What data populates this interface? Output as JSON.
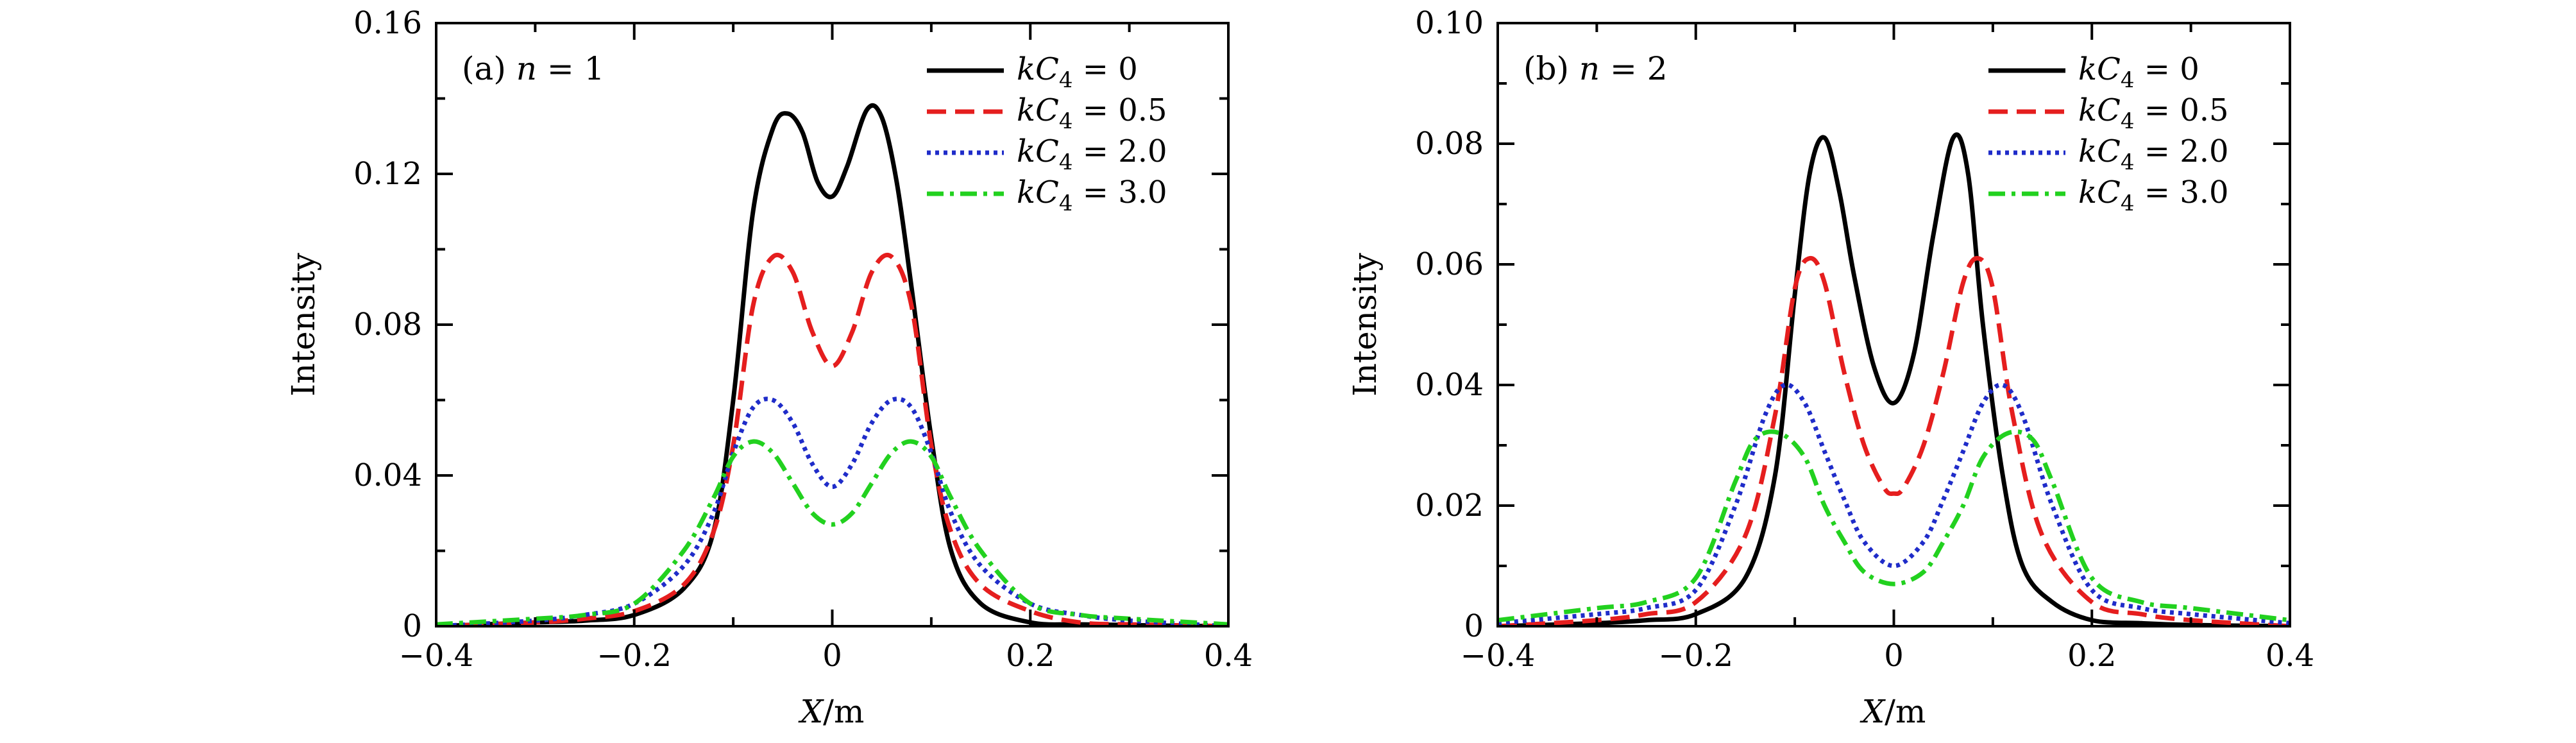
{
  "chart_data": [
    {
      "type": "line",
      "panel_label": "(a) n = 1",
      "xlabel": "X/m",
      "ylabel": "Intensity",
      "xlim": [
        -0.4,
        0.4
      ],
      "ylim": [
        0,
        0.16
      ],
      "xticks": [
        "−0.4",
        "−0.2",
        "0",
        "0.2",
        "0.4"
      ],
      "yticks": [
        "0",
        "0.04",
        "0.08",
        "0.12",
        "0.16"
      ],
      "legend_position": "top-right",
      "grid": false,
      "series": [
        {
          "name": "kC4 = 0",
          "color": "#000000",
          "dash": "solid",
          "x": [
            -0.4,
            -0.35,
            -0.3,
            -0.25,
            -0.2,
            -0.15,
            -0.12,
            -0.1,
            -0.08,
            -0.06,
            -0.045,
            -0.03,
            -0.015,
            0,
            0.015,
            0.035,
            0.05,
            0.065,
            0.08,
            0.1,
            0.12,
            0.15,
            0.2,
            0.25,
            0.3,
            0.35,
            0.4
          ],
          "y": [
            0.0,
            0.0005,
            0.001,
            0.0015,
            0.003,
            0.01,
            0.025,
            0.06,
            0.11,
            0.132,
            0.136,
            0.131,
            0.118,
            0.114,
            0.122,
            0.137,
            0.135,
            0.118,
            0.09,
            0.05,
            0.02,
            0.006,
            0.001,
            0.0005,
            0.0003,
            0.0001,
            0.0
          ]
        },
        {
          "name": "kC4 = 0.5",
          "color": "#e51e1e",
          "dash": "dashed",
          "x": [
            -0.4,
            -0.3,
            -0.25,
            -0.2,
            -0.15,
            -0.12,
            -0.1,
            -0.08,
            -0.06,
            -0.04,
            -0.02,
            0,
            0.02,
            0.04,
            0.06,
            0.08,
            0.1,
            0.12,
            0.15,
            0.2,
            0.25,
            0.3,
            0.4
          ],
          "y": [
            0.0,
            0.001,
            0.002,
            0.004,
            0.011,
            0.025,
            0.048,
            0.085,
            0.098,
            0.094,
            0.078,
            0.069,
            0.078,
            0.094,
            0.098,
            0.085,
            0.048,
            0.025,
            0.011,
            0.004,
            0.001,
            0.0005,
            0.0
          ]
        },
        {
          "name": "kC4 = 2.0",
          "color": "#1f2cc9",
          "dash": "dotted",
          "x": [
            -0.4,
            -0.3,
            -0.25,
            -0.2,
            -0.15,
            -0.12,
            -0.1,
            -0.08,
            -0.06,
            -0.04,
            -0.02,
            0,
            0.02,
            0.04,
            0.06,
            0.08,
            0.1,
            0.12,
            0.15,
            0.2,
            0.25,
            0.3,
            0.4
          ],
          "y": [
            0.0,
            0.0015,
            0.003,
            0.006,
            0.016,
            0.03,
            0.046,
            0.058,
            0.06,
            0.054,
            0.043,
            0.037,
            0.043,
            0.054,
            0.06,
            0.058,
            0.046,
            0.03,
            0.016,
            0.006,
            0.003,
            0.0015,
            0.0
          ]
        },
        {
          "name": "kC4 = 3.0",
          "color": "#22d11f",
          "dash": "dashdot",
          "x": [
            -0.4,
            -0.3,
            -0.25,
            -0.2,
            -0.15,
            -0.12,
            -0.1,
            -0.08,
            -0.06,
            -0.04,
            -0.02,
            0,
            0.02,
            0.04,
            0.06,
            0.08,
            0.1,
            0.12,
            0.15,
            0.2,
            0.25,
            0.3,
            0.4
          ],
          "y": [
            0.0005,
            0.002,
            0.003,
            0.006,
            0.02,
            0.034,
            0.045,
            0.049,
            0.046,
            0.038,
            0.03,
            0.027,
            0.03,
            0.038,
            0.046,
            0.049,
            0.045,
            0.034,
            0.02,
            0.006,
            0.003,
            0.002,
            0.0005
          ]
        }
      ]
    },
    {
      "type": "line",
      "panel_label": "(b) n = 2",
      "xlabel": "X/m",
      "ylabel": "Intensity",
      "xlim": [
        -0.4,
        0.4
      ],
      "ylim": [
        0,
        0.1
      ],
      "xticks": [
        "−0.4",
        "−0.2",
        "0",
        "0.2",
        "0.4"
      ],
      "yticks": [
        "0",
        "0.02",
        "0.04",
        "0.06",
        "0.08",
        "0.10"
      ],
      "legend_position": "top-right",
      "grid": false,
      "series": [
        {
          "name": "kC4 = 0",
          "color": "#000000",
          "dash": "solid",
          "x": [
            -0.4,
            -0.3,
            -0.25,
            -0.2,
            -0.15,
            -0.12,
            -0.1,
            -0.085,
            -0.07,
            -0.055,
            -0.04,
            -0.02,
            0,
            0.02,
            0.04,
            0.06,
            0.075,
            0.09,
            0.11,
            0.13,
            0.16,
            0.2,
            0.25,
            0.3,
            0.4
          ],
          "y": [
            0.0,
            0.0005,
            0.001,
            0.002,
            0.008,
            0.025,
            0.055,
            0.075,
            0.081,
            0.072,
            0.058,
            0.043,
            0.037,
            0.045,
            0.065,
            0.081,
            0.075,
            0.05,
            0.025,
            0.01,
            0.004,
            0.001,
            0.0005,
            0.0002,
            0.0
          ]
        },
        {
          "name": "kC4 = 0.5",
          "color": "#e51e1e",
          "dash": "dashed",
          "x": [
            -0.4,
            -0.3,
            -0.25,
            -0.2,
            -0.15,
            -0.12,
            -0.1,
            -0.085,
            -0.07,
            -0.05,
            -0.03,
            -0.01,
            0,
            0.01,
            0.03,
            0.05,
            0.07,
            0.085,
            0.1,
            0.12,
            0.15,
            0.2,
            0.25,
            0.3,
            0.4
          ],
          "y": [
            0.0,
            0.001,
            0.002,
            0.004,
            0.015,
            0.035,
            0.056,
            0.061,
            0.057,
            0.042,
            0.03,
            0.023,
            0.022,
            0.023,
            0.03,
            0.042,
            0.057,
            0.061,
            0.056,
            0.035,
            0.015,
            0.004,
            0.002,
            0.001,
            0.0
          ]
        },
        {
          "name": "kC4 = 2.0",
          "color": "#1f2cc9",
          "dash": "dotted",
          "x": [
            -0.4,
            -0.3,
            -0.25,
            -0.2,
            -0.16,
            -0.13,
            -0.11,
            -0.09,
            -0.07,
            -0.05,
            -0.03,
            0,
            0.03,
            0.05,
            0.07,
            0.09,
            0.11,
            0.13,
            0.16,
            0.2,
            0.25,
            0.3,
            0.4
          ],
          "y": [
            0.0005,
            0.002,
            0.003,
            0.006,
            0.02,
            0.035,
            0.04,
            0.037,
            0.029,
            0.021,
            0.014,
            0.01,
            0.014,
            0.021,
            0.029,
            0.037,
            0.04,
            0.035,
            0.02,
            0.006,
            0.003,
            0.002,
            0.0005
          ]
        },
        {
          "name": "kC4 = 3.0",
          "color": "#22d11f",
          "dash": "dashdot",
          "x": [
            -0.4,
            -0.3,
            -0.25,
            -0.2,
            -0.16,
            -0.14,
            -0.115,
            -0.09,
            -0.07,
            -0.05,
            -0.03,
            0,
            0.03,
            0.05,
            0.07,
            0.09,
            0.115,
            0.14,
            0.16,
            0.2,
            0.25,
            0.3,
            0.4
          ],
          "y": [
            0.001,
            0.003,
            0.004,
            0.008,
            0.024,
            0.031,
            0.032,
            0.028,
            0.02,
            0.014,
            0.009,
            0.007,
            0.009,
            0.014,
            0.02,
            0.028,
            0.032,
            0.031,
            0.024,
            0.008,
            0.004,
            0.003,
            0.001
          ]
        }
      ]
    }
  ]
}
